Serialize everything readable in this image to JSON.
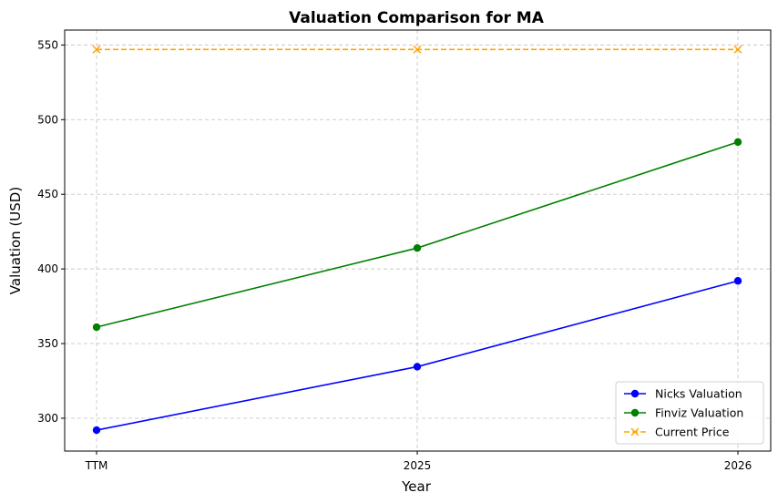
{
  "chart_data": {
    "type": "line",
    "title": "Valuation Comparison for MA",
    "xlabel": "Year",
    "ylabel": "Valuation (USD)",
    "categories": [
      "TTM",
      "2025",
      "2026"
    ],
    "ylim": [
      278,
      560
    ],
    "yticks": [
      300,
      350,
      400,
      450,
      500,
      550
    ],
    "grid": true,
    "legend_position": "lower-right",
    "series": [
      {
        "name": "Nicks Valuation",
        "values": [
          292,
          334.5,
          392
        ],
        "color": "#0000ff",
        "marker": "circle",
        "linestyle": "solid"
      },
      {
        "name": "Finviz Valuation",
        "values": [
          361,
          414,
          485
        ],
        "color": "#008000",
        "marker": "circle",
        "linestyle": "solid"
      },
      {
        "name": "Current Price",
        "values": [
          547,
          547,
          547
        ],
        "color": "#ffa500",
        "marker": "x",
        "linestyle": "dashed"
      }
    ]
  }
}
